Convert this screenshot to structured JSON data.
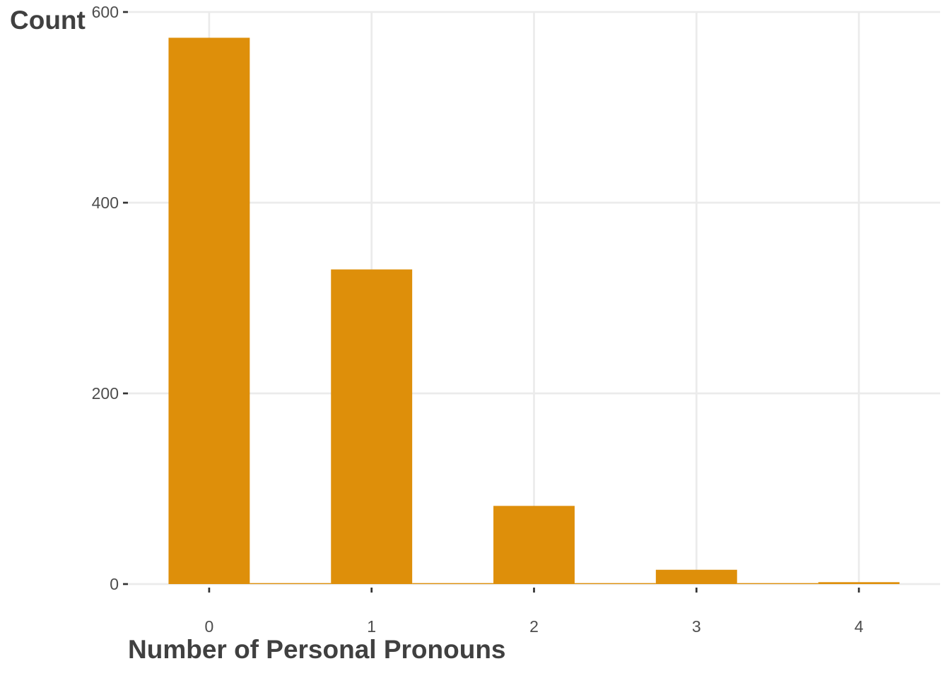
{
  "chart_data": {
    "type": "bar",
    "title": "",
    "xlabel": "Number of Personal Pronouns",
    "ylabel": "Count",
    "x_ticks": [
      "0",
      "1",
      "2",
      "3",
      "4"
    ],
    "y_ticks": [
      "0",
      "200",
      "400",
      "600"
    ],
    "xlim": [
      -0.5,
      4.5
    ],
    "ylim": [
      0,
      600
    ],
    "grid": true,
    "bar_color": "#DE8F0A",
    "bars": [
      {
        "x_start": -0.25,
        "x_end": 0.25,
        "value": 573
      },
      {
        "x_start": 0.25,
        "x_end": 0.75,
        "value": 1
      },
      {
        "x_start": 0.75,
        "x_end": 1.25,
        "value": 330
      },
      {
        "x_start": 1.25,
        "x_end": 1.75,
        "value": 1
      },
      {
        "x_start": 1.75,
        "x_end": 2.25,
        "value": 82
      },
      {
        "x_start": 2.25,
        "x_end": 2.75,
        "value": 1
      },
      {
        "x_start": 2.75,
        "x_end": 3.25,
        "value": 15
      },
      {
        "x_start": 3.25,
        "x_end": 3.75,
        "value": 1
      },
      {
        "x_start": 3.75,
        "x_end": 4.25,
        "value": 2
      }
    ]
  }
}
